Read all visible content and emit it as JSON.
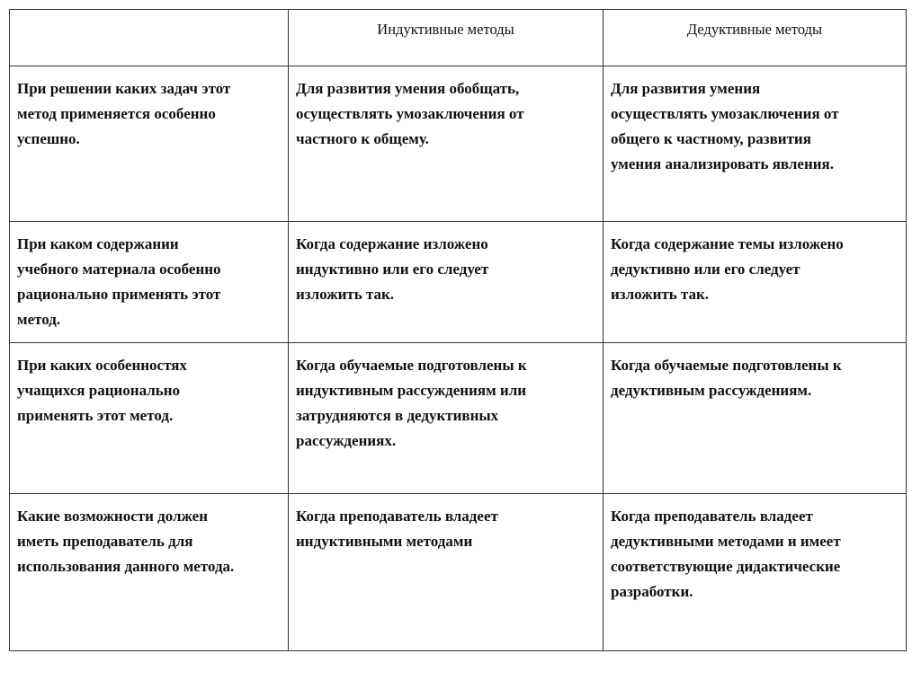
{
  "header": [
    "",
    "Индуктивные методы",
    "Дедуктивные методы"
  ],
  "rows": [
    [
      "При решении каких задач этот\nметод применяется особенно\nуспешно.",
      "Для развития умения обобщать,\nосуществлять умозаключения от\nчастного к общему.",
      "Для развития умения\nосуществлять умозаключения от\nобщего к частному, развития\nумения анализировать явления."
    ],
    [
      "При каком содержании\nучебного материала особенно\nрационально применять этот\nметод.",
      "Когда содержание изложено\nиндуктивно или его следует\nизложить так.",
      "Когда содержание темы изложено\nдедуктивно или его следует\nизложить так."
    ],
    [
      "При каких особенностях\nучащихся рационально\nприменять этот метод.",
      "Когда обучаемые подготовлены к\nиндуктивным рассуждениям или\nзатрудняются в дедуктивных\nрассуждениях.",
      "Когда обучаемые подготовлены к\nдедуктивным рассуждениям."
    ],
    [
      "Какие возможности должен\nиметь преподаватель для\nиспользования данного метода.",
      "Когда преподаватель владеет\nиндуктивными методами",
      "Когда преподаватель владеет\nдедуктивными методами и имеет\nсоответствующие дидактические\nразработки."
    ]
  ]
}
